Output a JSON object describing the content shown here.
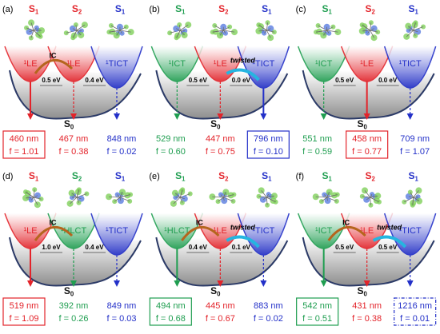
{
  "panels": [
    {
      "label": "(a)",
      "states": [
        {
          "letter": "S",
          "index": "1",
          "color": "#e3232a"
        },
        {
          "letter": "S",
          "index": "2",
          "color": "#e3232a"
        },
        {
          "letter": "S",
          "index": "1",
          "color": "#2330c8"
        }
      ],
      "wells": [
        {
          "label": "¹LE",
          "color": "#e3232a"
        },
        {
          "label": "¹LE",
          "color": "#e3232a"
        },
        {
          "label": "¹TICT",
          "color": "#2330c8"
        }
      ],
      "notes": {
        "ic": "IC"
      },
      "gaps": [
        "0.5 eV",
        "0.4 eV"
      ],
      "ground": {
        "letter": "S",
        "index": "0"
      },
      "emissions": [
        {
          "wavelength": "460 nm",
          "f": "f = 1.01",
          "color": "#e3232a",
          "box": "solid"
        },
        {
          "wavelength": "467 nm",
          "f": "f = 0.38",
          "color": "#e3232a"
        },
        {
          "wavelength": "848 nm",
          "f": "f = 0.02",
          "color": "#2330c8"
        }
      ]
    },
    {
      "label": "(b)",
      "states": [
        {
          "letter": "S",
          "index": "1",
          "color": "#1f9e50"
        },
        {
          "letter": "S",
          "index": "2",
          "color": "#e3232a"
        },
        {
          "letter": "S",
          "index": "1",
          "color": "#2330c8"
        }
      ],
      "wells": [
        {
          "label": "¹ICT",
          "color": "#1f9e50"
        },
        {
          "label": "¹LE",
          "color": "#e3232a"
        },
        {
          "label": "¹TICT",
          "color": "#2330c8"
        }
      ],
      "notes": {
        "twisted": "twisted"
      },
      "gaps": [
        "0.5 eV",
        "0.0 eV"
      ],
      "ground": {
        "letter": "S",
        "index": "0"
      },
      "emissions": [
        {
          "wavelength": "529 nm",
          "f": "f = 0.60",
          "color": "#1f9e50"
        },
        {
          "wavelength": "447 nm",
          "f": "f = 0.75",
          "color": "#e3232a"
        },
        {
          "wavelength": "796 nm",
          "f": "f = 0.10",
          "color": "#2330c8",
          "box": "solid"
        }
      ]
    },
    {
      "label": "(c)",
      "states": [
        {
          "letter": "S",
          "index": "1",
          "color": "#1f9e50"
        },
        {
          "letter": "S",
          "index": "2",
          "color": "#e3232a"
        },
        {
          "letter": "S",
          "index": "1",
          "color": "#2330c8"
        }
      ],
      "wells": [
        {
          "label": "¹ICT",
          "color": "#1f9e50"
        },
        {
          "label": "¹LE",
          "color": "#e3232a"
        },
        {
          "label": "¹TICT",
          "color": "#2330c8"
        }
      ],
      "notes": {},
      "gaps": [
        "0.5 eV",
        "0.0 eV"
      ],
      "ground": {
        "letter": "S",
        "index": "0"
      },
      "emissions": [
        {
          "wavelength": "551 nm",
          "f": "f = 0.59",
          "color": "#1f9e50"
        },
        {
          "wavelength": "458 nm",
          "f": "f = 0.77",
          "color": "#e3232a",
          "box": "solid"
        },
        {
          "wavelength": "709 nm",
          "f": "f = 1.07",
          "color": "#2330c8"
        }
      ]
    },
    {
      "label": "(d)",
      "states": [
        {
          "letter": "S",
          "index": "1",
          "color": "#e3232a"
        },
        {
          "letter": "S",
          "index": "2",
          "color": "#1f9e50"
        },
        {
          "letter": "S",
          "index": "1",
          "color": "#2330c8"
        }
      ],
      "wells": [
        {
          "label": "¹LE",
          "color": "#e3232a"
        },
        {
          "label": "¹HLCT",
          "color": "#1f9e50"
        },
        {
          "label": "¹TICT",
          "color": "#2330c8"
        }
      ],
      "notes": {
        "ic": "IC"
      },
      "gaps": [
        "1.0 eV",
        "0.4 eV"
      ],
      "ground": {
        "letter": "S",
        "index": "0"
      },
      "emissions": [
        {
          "wavelength": "519 nm",
          "f": "f = 1.09",
          "color": "#e3232a",
          "box": "solid"
        },
        {
          "wavelength": "392 nm",
          "f": "f = 0.26",
          "color": "#1f9e50"
        },
        {
          "wavelength": "849 nm",
          "f": "f = 0.03",
          "color": "#2330c8"
        }
      ]
    },
    {
      "label": "(e)",
      "states": [
        {
          "letter": "S",
          "index": "1",
          "color": "#1f9e50"
        },
        {
          "letter": "S",
          "index": "2",
          "color": "#e3232a"
        },
        {
          "letter": "S",
          "index": "1",
          "color": "#2330c8"
        }
      ],
      "wells": [
        {
          "label": "¹HLCT",
          "color": "#1f9e50"
        },
        {
          "label": "¹LE",
          "color": "#e3232a"
        },
        {
          "label": "¹TICT",
          "color": "#2330c8"
        }
      ],
      "notes": {
        "ic": "IC",
        "twisted": "twisted"
      },
      "gaps": [
        "0.4 eV",
        "0.1 eV"
      ],
      "ground": {
        "letter": "S",
        "index": "0"
      },
      "emissions": [
        {
          "wavelength": "494 nm",
          "f": "f = 0.68",
          "color": "#1f9e50",
          "box": "solid"
        },
        {
          "wavelength": "445 nm",
          "f": "f = 0.67",
          "color": "#e3232a"
        },
        {
          "wavelength": "883 nm",
          "f": "f = 0.02",
          "color": "#2330c8"
        }
      ]
    },
    {
      "label": "(f)",
      "states": [
        {
          "letter": "S",
          "index": "1",
          "color": "#1f9e50"
        },
        {
          "letter": "S",
          "index": "2",
          "color": "#e3232a"
        },
        {
          "letter": "S",
          "index": "1",
          "color": "#2330c8"
        }
      ],
      "wells": [
        {
          "label": "¹ICT",
          "color": "#1f9e50"
        },
        {
          "label": "¹LE",
          "color": "#e3232a"
        },
        {
          "label": "¹TICT",
          "color": "#2330c8"
        }
      ],
      "notes": {
        "ic": "IC",
        "twisted": "twisted"
      },
      "gaps": [
        "0.5 eV",
        "0.5 eV"
      ],
      "ground": {
        "letter": "S",
        "index": "0"
      },
      "emissions": [
        {
          "wavelength": "542 nm",
          "f": "f = 0.51",
          "color": "#1f9e50",
          "box": "solid"
        },
        {
          "wavelength": "431 nm",
          "f": "f = 0.38",
          "color": "#e3232a"
        },
        {
          "wavelength": "1216 nm",
          "f": "f = 0.01",
          "color": "#2330c8",
          "box": "dashdot"
        }
      ]
    }
  ]
}
